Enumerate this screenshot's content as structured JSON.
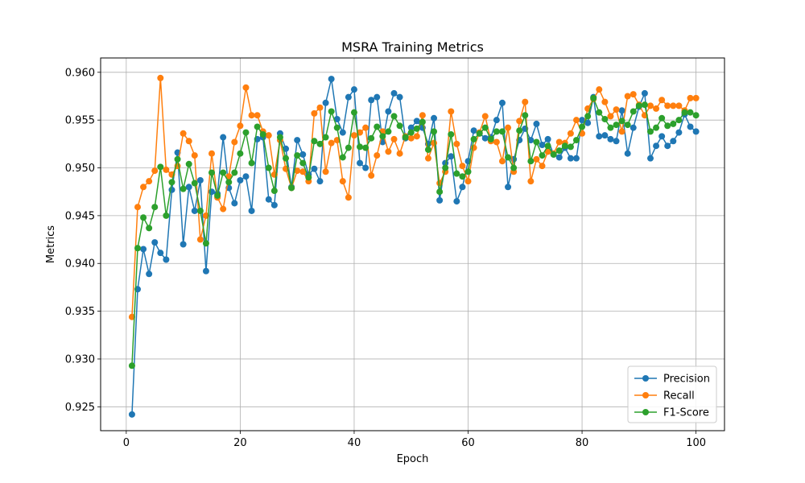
{
  "chart_data": {
    "type": "line",
    "title": "MSRA Training Metrics",
    "xlabel": "Epoch",
    "ylabel": "Metrics",
    "xlim": [
      -4.5,
      105
    ],
    "ylim": [
      0.9225,
      0.9615
    ],
    "xticks": [
      0,
      20,
      40,
      60,
      80,
      100
    ],
    "xtick_labels": [
      "0",
      "20",
      "40",
      "60",
      "80",
      "100"
    ],
    "yticks": [
      0.925,
      0.93,
      0.935,
      0.94,
      0.945,
      0.95,
      0.955,
      0.96
    ],
    "ytick_labels": [
      "0.925",
      "0.930",
      "0.935",
      "0.940",
      "0.945",
      "0.950",
      "0.955",
      "0.960"
    ],
    "grid": true,
    "legend_position": "lower-right",
    "marker": "circle",
    "x": [
      1,
      2,
      3,
      4,
      5,
      6,
      7,
      8,
      9,
      10,
      11,
      12,
      13,
      14,
      15,
      16,
      17,
      18,
      19,
      20,
      21,
      22,
      23,
      24,
      25,
      26,
      27,
      28,
      29,
      30,
      31,
      32,
      33,
      34,
      35,
      36,
      37,
      38,
      39,
      40,
      41,
      42,
      43,
      44,
      45,
      46,
      47,
      48,
      49,
      50,
      51,
      52,
      53,
      54,
      55,
      56,
      57,
      58,
      59,
      60,
      61,
      62,
      63,
      64,
      65,
      66,
      67,
      68,
      69,
      70,
      71,
      72,
      73,
      74,
      75,
      76,
      77,
      78,
      79,
      80,
      81,
      82,
      83,
      84,
      85,
      86,
      87,
      88,
      89,
      90,
      91,
      92,
      93,
      94,
      95,
      96,
      97,
      98,
      99,
      100
    ],
    "series": [
      {
        "name": "Precision",
        "color": "#1f77b4",
        "values": [
          0.9242,
          0.9373,
          0.9415,
          0.9389,
          0.9422,
          0.9411,
          0.9404,
          0.9477,
          0.9516,
          0.942,
          0.948,
          0.9455,
          0.9487,
          0.9392,
          0.9475,
          0.9473,
          0.9532,
          0.9479,
          0.9463,
          0.9487,
          0.9491,
          0.9455,
          0.953,
          0.9532,
          0.9467,
          0.9461,
          0.9536,
          0.952,
          0.948,
          0.9529,
          0.9514,
          0.9493,
          0.9499,
          0.9486,
          0.9568,
          0.9593,
          0.9551,
          0.9537,
          0.9574,
          0.9582,
          0.9505,
          0.95,
          0.9571,
          0.9574,
          0.9527,
          0.9559,
          0.9578,
          0.9574,
          0.9531,
          0.9542,
          0.9549,
          0.9542,
          0.9525,
          0.9552,
          0.9466,
          0.9505,
          0.9512,
          0.9465,
          0.948,
          0.9507,
          0.9539,
          0.9536,
          0.9531,
          0.9532,
          0.955,
          0.9568,
          0.948,
          0.9509,
          0.9529,
          0.9541,
          0.9529,
          0.9546,
          0.9524,
          0.953,
          0.9514,
          0.9511,
          0.9521,
          0.951,
          0.951,
          0.955,
          0.9547,
          0.9574,
          0.9533,
          0.9534,
          0.953,
          0.9528,
          0.956,
          0.9515,
          0.9542,
          0.9564,
          0.9578,
          0.951,
          0.9523,
          0.9533,
          0.9523,
          0.9528,
          0.9537,
          0.9556,
          0.9543,
          0.9538
        ]
      },
      {
        "name": "Recall",
        "color": "#ff7f0e",
        "values": [
          0.9344,
          0.9459,
          0.948,
          0.9486,
          0.9497,
          0.9594,
          0.9498,
          0.9493,
          0.9502,
          0.9536,
          0.9528,
          0.9513,
          0.9425,
          0.945,
          0.9515,
          0.9469,
          0.9457,
          0.9491,
          0.9527,
          0.9544,
          0.9584,
          0.9555,
          0.9555,
          0.9538,
          0.9534,
          0.9493,
          0.9529,
          0.9499,
          0.9479,
          0.9497,
          0.9496,
          0.9486,
          0.9557,
          0.9563,
          0.9496,
          0.9526,
          0.9529,
          0.9486,
          0.9469,
          0.9534,
          0.9537,
          0.9542,
          0.9492,
          0.9513,
          0.9538,
          0.9517,
          0.953,
          0.9515,
          0.9533,
          0.9531,
          0.9533,
          0.9555,
          0.951,
          0.9526,
          0.9484,
          0.9496,
          0.9559,
          0.9525,
          0.9502,
          0.9486,
          0.9521,
          0.9537,
          0.9554,
          0.9528,
          0.9527,
          0.9507,
          0.9542,
          0.9496,
          0.9549,
          0.9569,
          0.9486,
          0.9509,
          0.9502,
          0.9517,
          0.9515,
          0.9527,
          0.9526,
          0.9536,
          0.955,
          0.9536,
          0.9562,
          0.9572,
          0.9582,
          0.9569,
          0.9554,
          0.9561,
          0.9538,
          0.9575,
          0.9577,
          0.9566,
          0.9555,
          0.9565,
          0.9562,
          0.9571,
          0.9565,
          0.9565,
          0.9565,
          0.956,
          0.9573,
          0.9573
        ]
      },
      {
        "name": "F1-Score",
        "color": "#2ca02c",
        "values": [
          0.9293,
          0.9416,
          0.9448,
          0.9437,
          0.9459,
          0.9501,
          0.945,
          0.9485,
          0.9509,
          0.9478,
          0.9504,
          0.9484,
          0.9455,
          0.9421,
          0.9495,
          0.9471,
          0.9495,
          0.9485,
          0.9495,
          0.9515,
          0.9537,
          0.9505,
          0.9543,
          0.9535,
          0.95,
          0.9476,
          0.9532,
          0.951,
          0.9479,
          0.9513,
          0.9505,
          0.949,
          0.9528,
          0.9525,
          0.9532,
          0.9559,
          0.9542,
          0.9511,
          0.9521,
          0.9558,
          0.9522,
          0.9521,
          0.9531,
          0.9543,
          0.9533,
          0.9538,
          0.9554,
          0.9544,
          0.9532,
          0.9537,
          0.9541,
          0.9548,
          0.9519,
          0.9538,
          0.9475,
          0.95,
          0.9535,
          0.9494,
          0.9491,
          0.9496,
          0.953,
          0.9536,
          0.9542,
          0.953,
          0.9538,
          0.9538,
          0.9511,
          0.95,
          0.9539,
          0.9555,
          0.9507,
          0.9527,
          0.9513,
          0.9523,
          0.9514,
          0.9518,
          0.9523,
          0.9522,
          0.9529,
          0.9543,
          0.9554,
          0.9573,
          0.9558,
          0.9551,
          0.9542,
          0.9545,
          0.9549,
          0.9545,
          0.9559,
          0.9565,
          0.9566,
          0.9538,
          0.9542,
          0.9552,
          0.9544,
          0.9546,
          0.955,
          0.9558,
          0.9558,
          0.9555
        ]
      }
    ]
  }
}
